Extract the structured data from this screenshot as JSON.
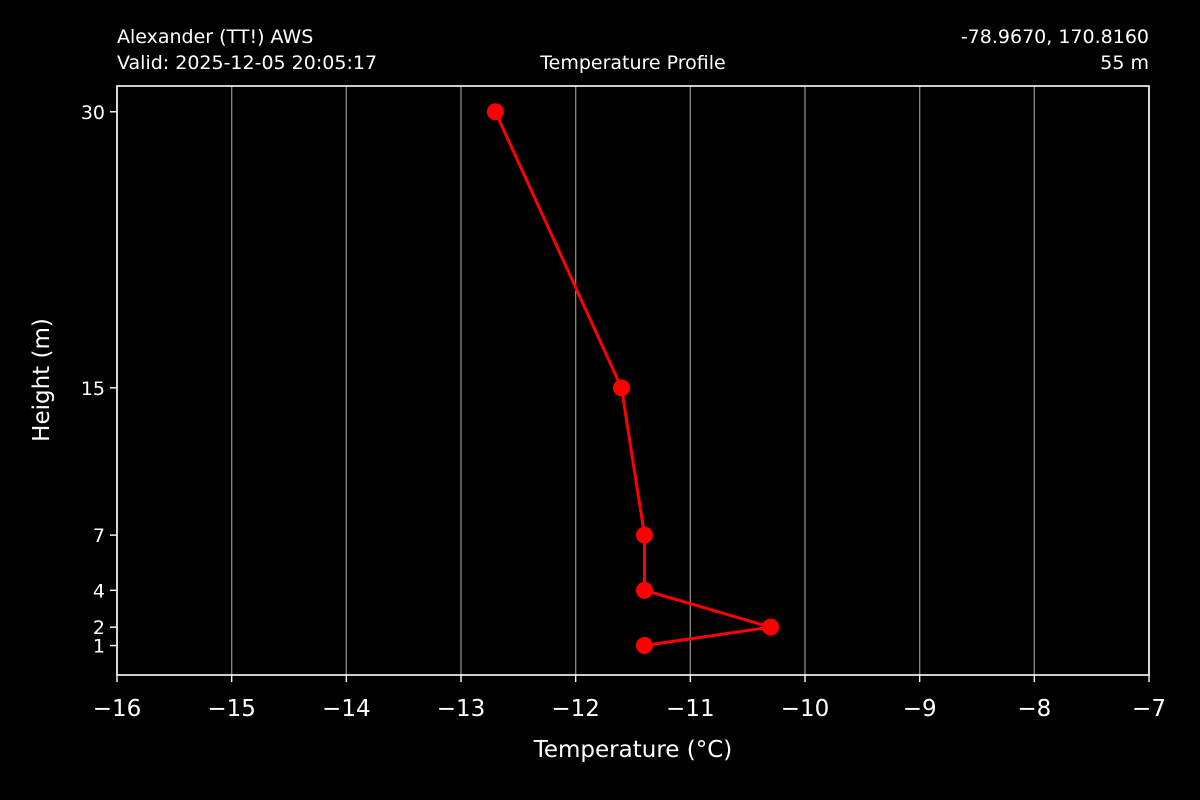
{
  "header": {
    "station": "Alexander (TT!) AWS",
    "valid": "Valid: 2025-12-05 20:05:17",
    "title": "Temperature Profile",
    "coords": "-78.9670, 170.8160",
    "elevation": "55 m"
  },
  "colors": {
    "background": "#000000",
    "series": "#ff0000",
    "grid": "#808080",
    "text": "#ffffff"
  },
  "chart_data": {
    "type": "line",
    "title": "Temperature Profile",
    "xlabel": "Temperature (°C)",
    "ylabel": "Height (m)",
    "xlim": [
      -16,
      -7
    ],
    "ylim": [
      -0.6,
      31.4
    ],
    "x_ticks": [
      -16,
      -15,
      -14,
      -13,
      -12,
      -11,
      -10,
      -9,
      -8,
      -7
    ],
    "x_tick_labels": [
      "−16",
      "−15",
      "−14",
      "−13",
      "−12",
      "−11",
      "−10",
      "−9",
      "−8",
      "−7"
    ],
    "y_ticks": [
      1,
      2,
      4,
      7,
      15,
      30
    ],
    "y_tick_labels": [
      "1",
      "2",
      "4",
      "7",
      "15",
      "30"
    ],
    "grid": "vertical",
    "series": [
      {
        "points": [
          {
            "height": 1,
            "temperature": -11.4
          },
          {
            "height": 2,
            "temperature": -10.3
          },
          {
            "height": 4,
            "temperature": -11.4
          },
          {
            "height": 7,
            "temperature": -11.4
          },
          {
            "height": 15,
            "temperature": -11.6
          },
          {
            "height": 30,
            "temperature": -12.7
          }
        ]
      }
    ]
  }
}
